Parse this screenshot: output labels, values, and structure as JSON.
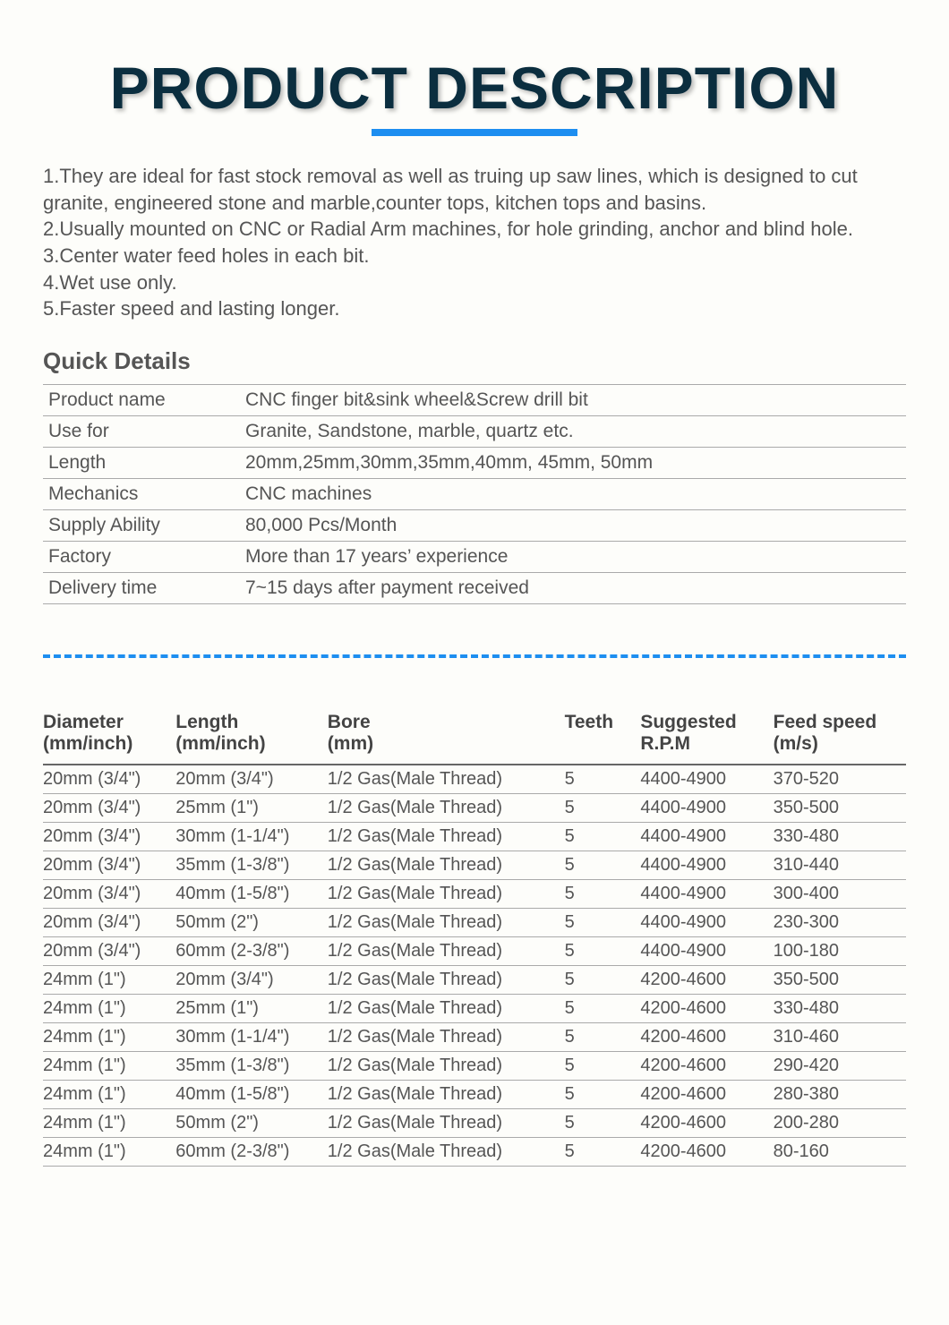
{
  "title": "PRODUCT DESCRIPTION",
  "colors": {
    "title": "#0b2e3f",
    "accent": "#1d8ef0",
    "text": "#555555",
    "border": "#aaaaaa",
    "background": "#fdfdfa"
  },
  "description_lines": [
    "1.They are ideal for fast stock removal as well as truing up saw lines, which is designed to cut granite, engineered stone and marble,counter tops, kitchen tops and basins.",
    "2.Usually mounted on CNC or Radial Arm machines, for hole grinding, anchor and blind hole.",
    "3.Center water feed holes in each bit.",
    "4.Wet use only.",
    "5.Faster speed and lasting longer."
  ],
  "quick_details_title": "Quick Details",
  "quick_details": [
    {
      "label": "Product name",
      "value": "CNC finger bit&sink wheel&Screw drill bit"
    },
    {
      "label": "Use for",
      "value": "Granite, Sandstone, marble, quartz etc."
    },
    {
      "label": "Length",
      "value": "20mm,25mm,30mm,35mm,40mm, 45mm, 50mm"
    },
    {
      "label": "Mechanics",
      "value": "CNC machines"
    },
    {
      "label": "Supply Ability",
      "value": "80,000 Pcs/Month"
    },
    {
      "label": "Factory",
      "value": "More than 17 years’ experience"
    },
    {
      "label": "Delivery time",
      "value": "7~15 days after payment received"
    }
  ],
  "spec_table": {
    "columns": [
      "Diameter (mm/inch)",
      "Length (mm/inch)",
      "Bore (mm)",
      "Teeth",
      "Suggested R.P.M",
      "Feed speed (m/s)"
    ],
    "rows": [
      [
        "20mm (3/4\")",
        "20mm (3/4\")",
        "1/2 Gas(Male Thread)",
        "5",
        "4400-4900",
        "370-520"
      ],
      [
        "20mm (3/4\")",
        "25mm (1\")",
        "1/2 Gas(Male Thread)",
        "5",
        "4400-4900",
        "350-500"
      ],
      [
        "20mm (3/4\")",
        "30mm (1-1/4\")",
        "1/2 Gas(Male Thread)",
        "5",
        "4400-4900",
        "330-480"
      ],
      [
        "20mm (3/4\")",
        "35mm (1-3/8\")",
        "1/2 Gas(Male Thread)",
        "5",
        "4400-4900",
        "310-440"
      ],
      [
        "20mm (3/4\")",
        "40mm (1-5/8\")",
        "1/2 Gas(Male Thread)",
        "5",
        "4400-4900",
        "300-400"
      ],
      [
        "20mm (3/4\")",
        "50mm (2\")",
        "1/2 Gas(Male Thread)",
        "5",
        "4400-4900",
        "230-300"
      ],
      [
        "20mm (3/4\")",
        "60mm (2-3/8\")",
        "1/2 Gas(Male Thread)",
        "5",
        "4400-4900",
        "100-180"
      ],
      [
        "24mm (1\")",
        "20mm (3/4\")",
        "1/2 Gas(Male Thread)",
        "5",
        "4200-4600",
        "350-500"
      ],
      [
        "24mm (1\")",
        "25mm (1\")",
        "1/2 Gas(Male Thread)",
        "5",
        "4200-4600",
        "330-480"
      ],
      [
        "24mm (1\")",
        "30mm (1-1/4\")",
        "1/2 Gas(Male Thread)",
        "5",
        "4200-4600",
        "310-460"
      ],
      [
        "24mm (1\")",
        "35mm (1-3/8\")",
        "1/2 Gas(Male Thread)",
        "5",
        "4200-4600",
        "290-420"
      ],
      [
        "24mm (1\")",
        "40mm (1-5/8\")",
        "1/2 Gas(Male Thread)",
        "5",
        "4200-4600",
        "280-380"
      ],
      [
        "24mm (1\")",
        "50mm (2\")",
        "1/2 Gas(Male Thread)",
        "5",
        "4200-4600",
        "200-280"
      ],
      [
        "24mm (1\")",
        "60mm (2-3/8\")",
        "1/2 Gas(Male Thread)",
        "5",
        "4200-4600",
        "80-160"
      ]
    ]
  }
}
